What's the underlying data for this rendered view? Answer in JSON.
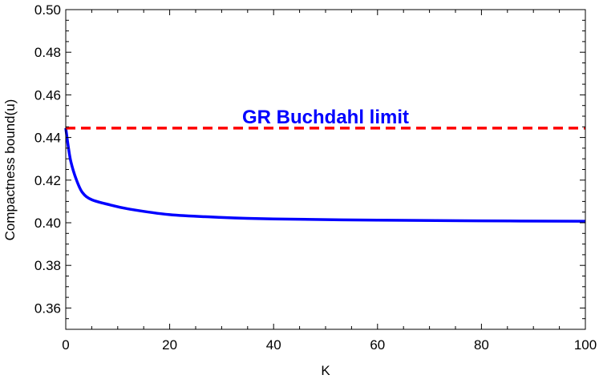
{
  "chart_data": {
    "type": "line",
    "title": "",
    "xlabel": "K",
    "ylabel": "Compactness bound(u)",
    "xlim": [
      0,
      100
    ],
    "ylim": [
      0.35,
      0.5
    ],
    "x_ticks": [
      0,
      20,
      40,
      60,
      80,
      100
    ],
    "x_tick_labels": [
      "0",
      "20",
      "40",
      "60",
      "80",
      "100"
    ],
    "y_ticks": [
      0.36,
      0.38,
      0.4,
      0.42,
      0.44,
      0.46,
      0.48,
      0.5
    ],
    "y_tick_labels": [
      "0.36",
      "0.38",
      "0.40",
      "0.42",
      "0.44",
      "0.46",
      "0.48",
      "0.50"
    ],
    "grid": false,
    "series": [
      {
        "color": "#0000ff",
        "style": "solid",
        "x": [
          0,
          0.5,
          1,
          2,
          3.2,
          5,
          8.5,
          12,
          20,
          30,
          40,
          60,
          80,
          100
        ],
        "y": [
          0.4444,
          0.4355,
          0.4285,
          0.4205,
          0.4142,
          0.4108,
          0.4084,
          0.4065,
          0.4038,
          0.4025,
          0.4018,
          0.4012,
          0.4009,
          0.4007
        ]
      },
      {
        "color": "#ff0000",
        "style": "dashed",
        "x": [
          0,
          100
        ],
        "y": [
          0.4444,
          0.4444
        ]
      }
    ],
    "annotations": [
      {
        "text": "GR Buchdahl limit",
        "x": 35,
        "y": 0.4475,
        "color": "#0000ff"
      }
    ]
  }
}
